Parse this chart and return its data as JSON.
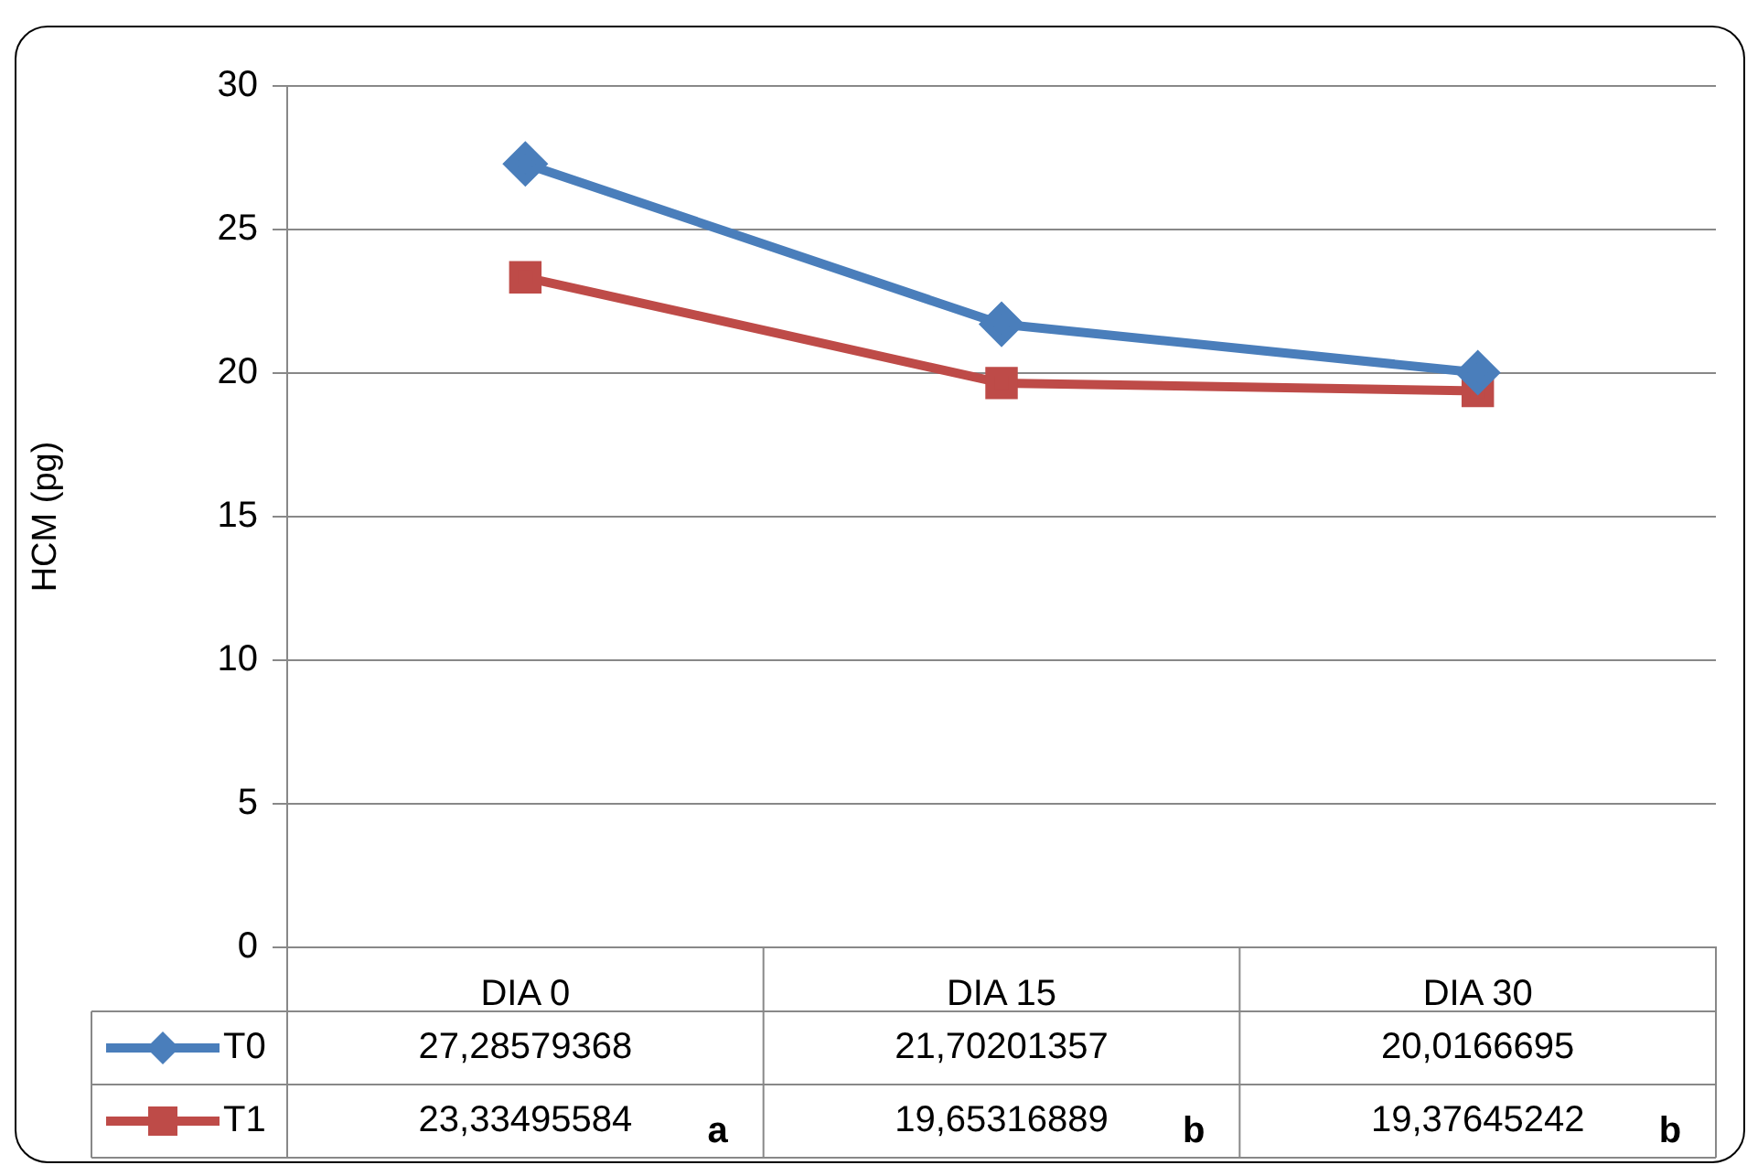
{
  "chart_data": {
    "type": "line",
    "ylabel": "HCM (pg)",
    "categories": [
      "DIA 0",
      "DIA 15",
      "DIA 30"
    ],
    "series": [
      {
        "name": "T0",
        "color": "#4a7ebb",
        "marker": "diamond",
        "values": [
          27.28579368,
          21.70201357,
          20.0166695
        ],
        "value_labels": [
          "27,28579368",
          "21,70201357",
          "20,0166695"
        ]
      },
      {
        "name": "T1",
        "color": "#be4b48",
        "marker": "square",
        "values": [
          23.33495584,
          19.65316889,
          19.37645242
        ],
        "value_labels": [
          "23,33495584",
          "19,65316889",
          "19,37645242"
        ]
      }
    ],
    "ylim": [
      0,
      30
    ],
    "yticks": [
      0,
      5,
      10,
      15,
      20,
      25,
      30
    ],
    "grid": "y",
    "legend": "bottom left",
    "line_style": "solid",
    "annotations": [
      "a",
      "b",
      "b"
    ]
  }
}
